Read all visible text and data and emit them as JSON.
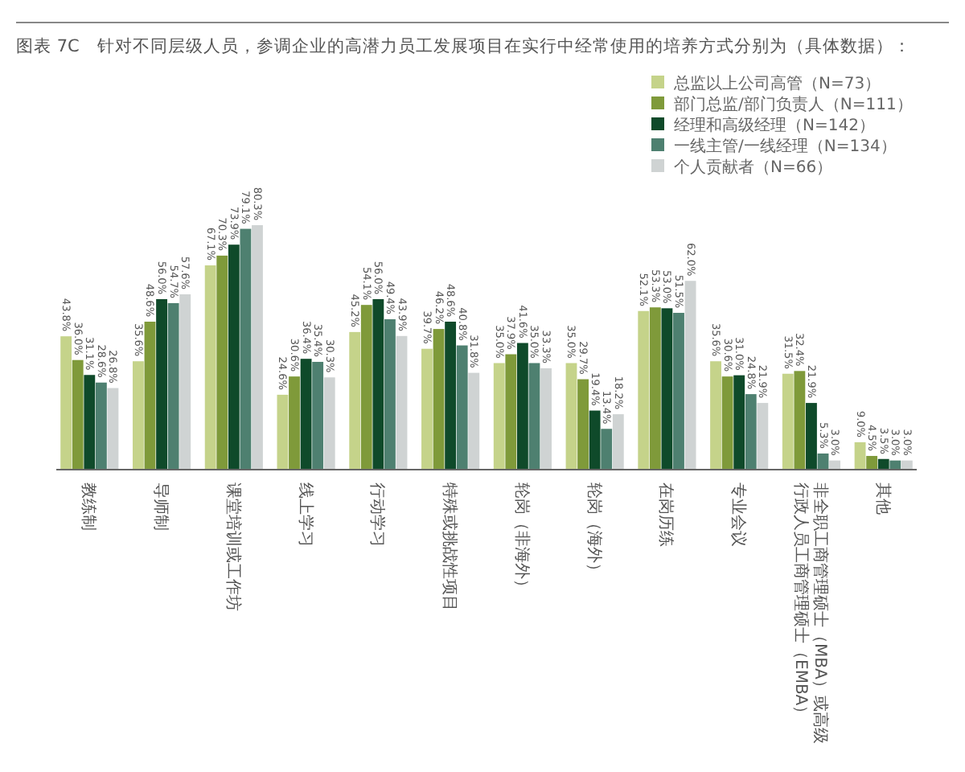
{
  "chart_data": {
    "type": "bar",
    "title": "图表 7C　针对不同层级人员，参调企业的高潜力员工发展项目在实行中经常使用的培养方式分别为（具体数据）：",
    "categories": [
      "教练制",
      "导师制",
      "课堂培训或工作坊",
      "线上学习",
      "行动学习",
      "特殊或挑战性项目",
      "轮岗（非海外）",
      "轮岗（海外）",
      "在岗历练",
      "专业会议",
      "非全职工商管理硕士（MBA）或高级行政人员工商管理硕士（EMBA）",
      "其他"
    ],
    "series": [
      {
        "name": "总监以上公司高管（N=73）",
        "color": "#c5d38a",
        "values": [
          43.8,
          35.6,
          67.1,
          24.6,
          45.2,
          39.7,
          35.0,
          35.0,
          52.1,
          35.6,
          31.5,
          9.0
        ],
        "value_labels": [
          "43.8%",
          "35.6%",
          "67.1%",
          "24.6%",
          "45.2%",
          "39.7%",
          "35.0%",
          "35.0%",
          "52.1%",
          "35.6%",
          "31.5%",
          "9.0%"
        ]
      },
      {
        "name": "部门总监/部门负责人（N=111）",
        "color": "#7f9a3a",
        "values": [
          36.0,
          48.6,
          70.3,
          30.6,
          54.1,
          46.2,
          37.9,
          29.7,
          53.3,
          30.6,
          32.4,
          4.5
        ],
        "value_labels": [
          "36.0%",
          "48.6%",
          "70.3%",
          "30.6%",
          "54.1%",
          "46.2%",
          "37.9%",
          "29.7%",
          "53.3%",
          "30.6%",
          "32.4%",
          "4.5%"
        ]
      },
      {
        "name": "经理和高级经理（N=142）",
        "color": "#0f4a2a",
        "values": [
          31.1,
          56.0,
          73.9,
          36.4,
          56.0,
          48.6,
          41.6,
          19.4,
          53.0,
          31.0,
          21.9,
          3.5
        ],
        "value_labels": [
          "31.1%",
          "56.0%",
          "73.9%",
          "36.4%",
          "56.0%",
          "48.6%",
          "41.6%",
          "19.4%",
          "53.0%",
          "31.0%",
          "21.9%",
          "3.5%"
        ]
      },
      {
        "name": "一线主管/一线经理（N=134）",
        "color": "#4e8070",
        "values": [
          28.6,
          54.7,
          79.1,
          35.4,
          49.4,
          40.8,
          35.0,
          13.4,
          51.5,
          24.8,
          5.3,
          3.0
        ],
        "value_labels": [
          "28.6%",
          "54.7%",
          "79.1%",
          "35.4%",
          "49.4%",
          "40.8%",
          "35.0%",
          "13.4%",
          "51.5%",
          "24.8%",
          "5.3%",
          "3.0%"
        ]
      },
      {
        "name": "个人贡献者（N=66）",
        "color": "#cfd3d3",
        "values": [
          26.8,
          57.6,
          80.3,
          30.3,
          43.9,
          31.8,
          33.3,
          18.2,
          62.0,
          21.9,
          3.0,
          3.0
        ],
        "value_labels": [
          "26.8%",
          "57.6%",
          "80.3%",
          "30.3%",
          "43.9%",
          "31.8%",
          "33.3%",
          "18.2%",
          "62.0%",
          "21.9%",
          "3.0%",
          "3.0%"
        ]
      }
    ],
    "legend": "top right"
  }
}
